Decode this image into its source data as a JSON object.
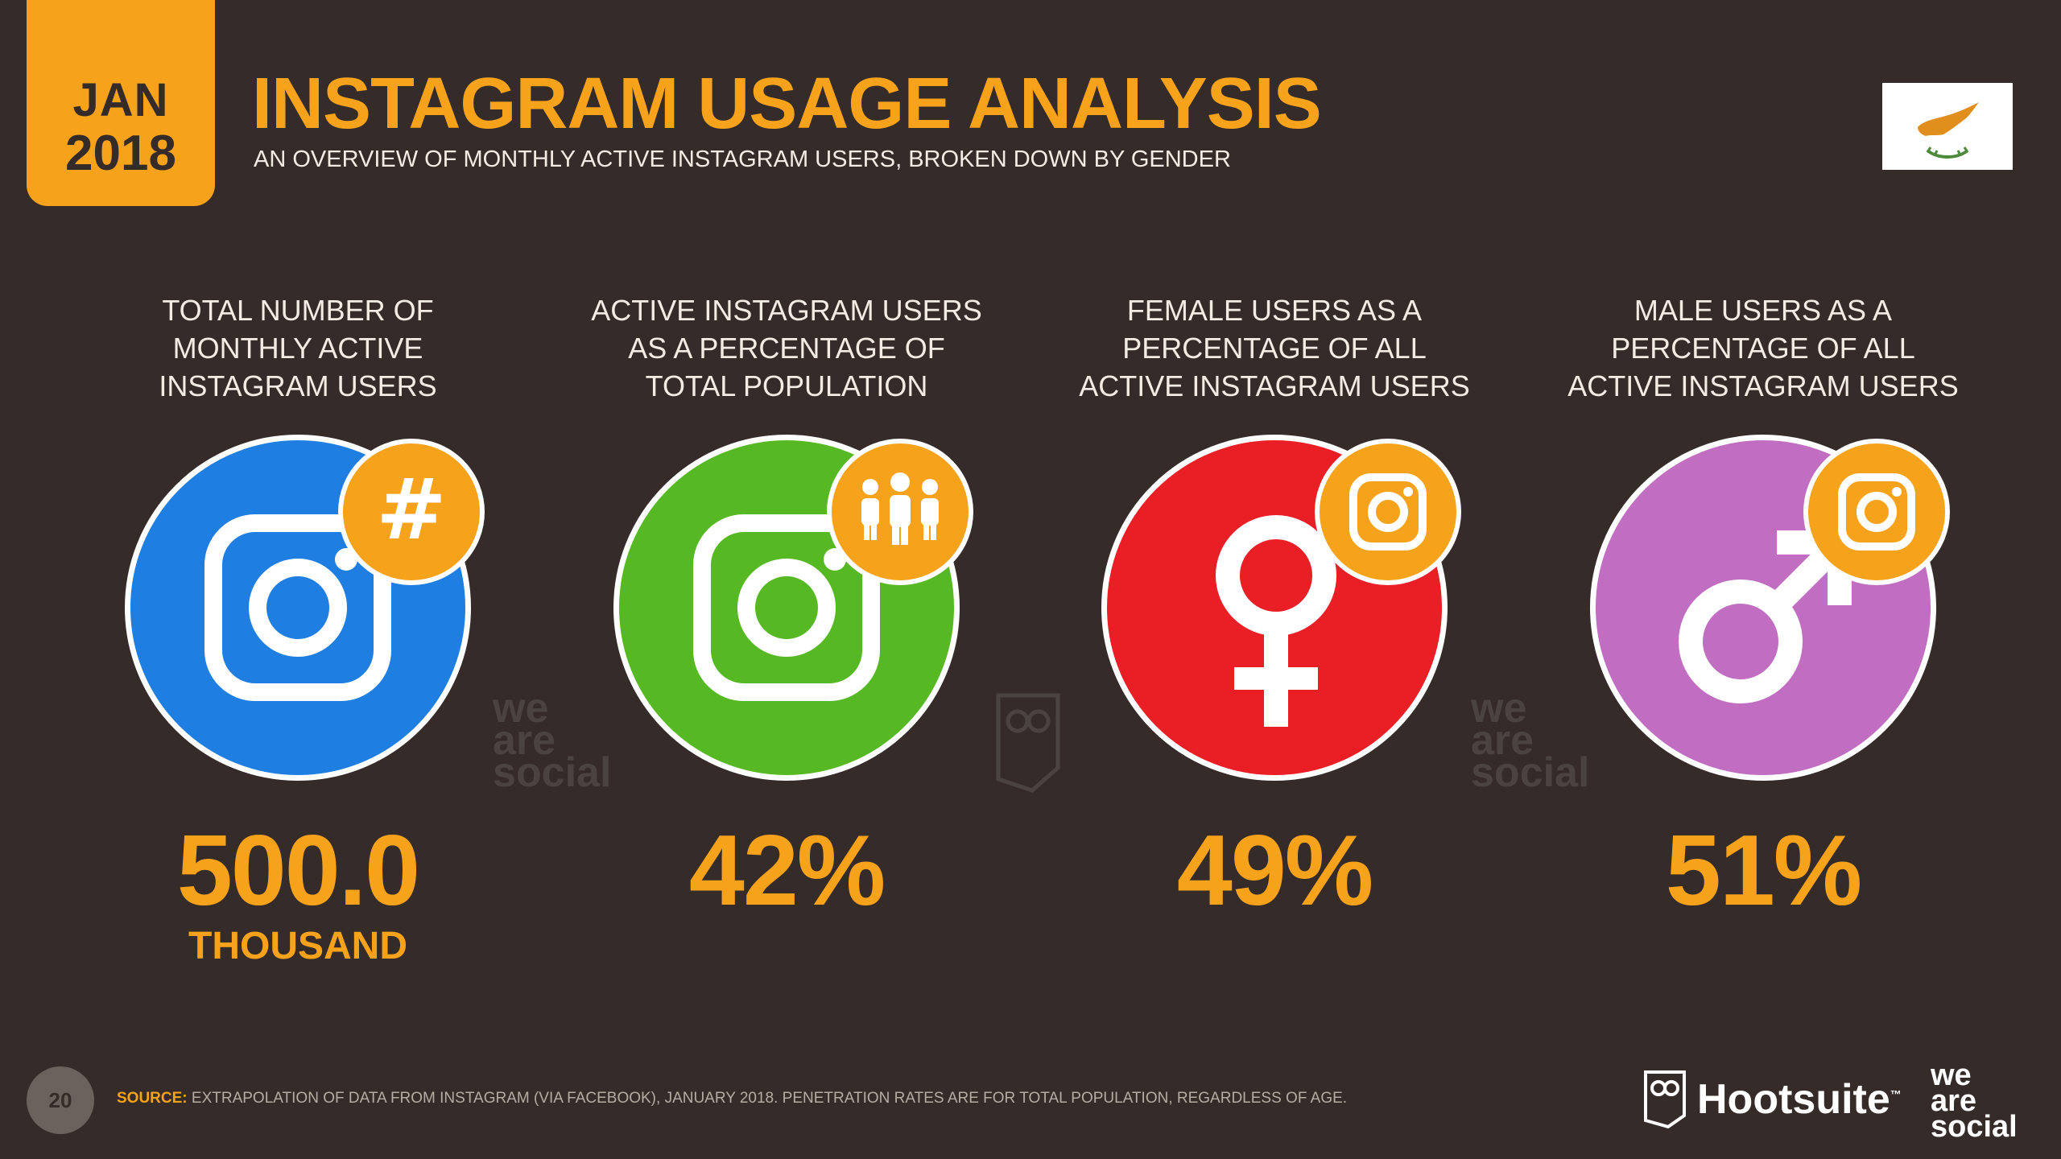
{
  "header": {
    "month": "JAN",
    "year": "2018",
    "title": "INSTAGRAM USAGE ANALYSIS",
    "subtitle": "AN OVERVIEW OF MONTHLY ACTIVE INSTAGRAM USERS, BROKEN DOWN BY GENDER"
  },
  "flag_icon": "cyprus-flag-icon",
  "stats": [
    {
      "label_lines": [
        "TOTAL NUMBER OF",
        "MONTHLY ACTIVE",
        "INSTAGRAM USERS"
      ],
      "value": "500.0",
      "unit": "THOUSAND",
      "color": "#1e7ee2",
      "icon": "instagram-icon",
      "badge_icon": "hashtag-icon"
    },
    {
      "label_lines": [
        "ACTIVE INSTAGRAM USERS",
        "AS A PERCENTAGE OF",
        "TOTAL POPULATION"
      ],
      "value": "42%",
      "color": "#56b924",
      "icon": "instagram-icon",
      "badge_icon": "people-icon"
    },
    {
      "label_lines": [
        "FEMALE USERS AS A",
        "PERCENTAGE OF ALL",
        "ACTIVE INSTAGRAM USERS"
      ],
      "value": "49%",
      "color": "#ea1f26",
      "icon": "female-symbol-icon",
      "badge_icon": "instagram-icon"
    },
    {
      "label_lines": [
        "MALE USERS AS A",
        "PERCENTAGE OF ALL",
        "ACTIVE INSTAGRAM USERS"
      ],
      "value": "51%",
      "color": "#c06dc2",
      "icon": "male-symbol-icon",
      "badge_icon": "instagram-icon"
    }
  ],
  "watermark": {
    "lines": [
      "we",
      "are",
      "social"
    ]
  },
  "footer": {
    "page_number": "20",
    "source_label": "SOURCE:",
    "source_text": "EXTRAPOLATION OF DATA FROM INSTAGRAM (VIA FACEBOOK), JANUARY 2018. PENETRATION RATES ARE FOR TOTAL POPULATION, REGARDLESS OF AGE.",
    "hootsuite": "Hootsuite",
    "hootsuite_tm": "™",
    "was_lines": [
      "we",
      "are",
      "social"
    ]
  }
}
